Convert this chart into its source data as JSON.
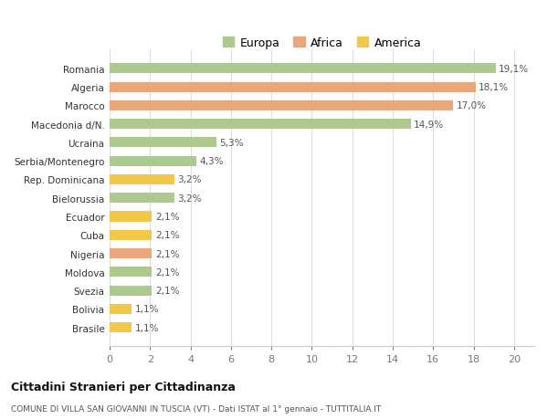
{
  "title1": "Cittadini Stranieri per Cittadinanza",
  "title2": "COMUNE DI VILLA SAN GIOVANNI IN TUSCIA (VT) - Dati ISTAT al 1° gennaio - TUTTITALIA.IT",
  "legend_labels": [
    "Europa",
    "Africa",
    "America"
  ],
  "categories": [
    "Romania",
    "Algeria",
    "Marocco",
    "Macedonia d/N.",
    "Ucraina",
    "Serbia/Montenegro",
    "Rep. Dominicana",
    "Bielorussia",
    "Ecuador",
    "Cuba",
    "Nigeria",
    "Moldova",
    "Svezia",
    "Bolivia",
    "Brasile"
  ],
  "values": [
    19.1,
    18.1,
    17.0,
    14.9,
    5.3,
    4.3,
    3.2,
    3.2,
    2.1,
    2.1,
    2.1,
    2.1,
    2.1,
    1.1,
    1.1
  ],
  "labels": [
    "19,1%",
    "18,1%",
    "17,0%",
    "14,9%",
    "5,3%",
    "4,3%",
    "3,2%",
    "3,2%",
    "2,1%",
    "2,1%",
    "2,1%",
    "2,1%",
    "2,1%",
    "1,1%",
    "1,1%"
  ],
  "continents": [
    "Europa",
    "Africa",
    "Africa",
    "Europa",
    "Europa",
    "Europa",
    "America",
    "Europa",
    "America",
    "America",
    "Africa",
    "Europa",
    "Europa",
    "America",
    "America"
  ],
  "color_map": {
    "Europa": "#adc990",
    "Africa": "#e8a87c",
    "America": "#f2c84b"
  },
  "xlim": [
    0,
    21
  ],
  "xticks": [
    0,
    2,
    4,
    6,
    8,
    10,
    12,
    14,
    16,
    18,
    20
  ],
  "bg_color": "#ffffff",
  "grid_color": "#dddddd",
  "bar_height": 0.55
}
